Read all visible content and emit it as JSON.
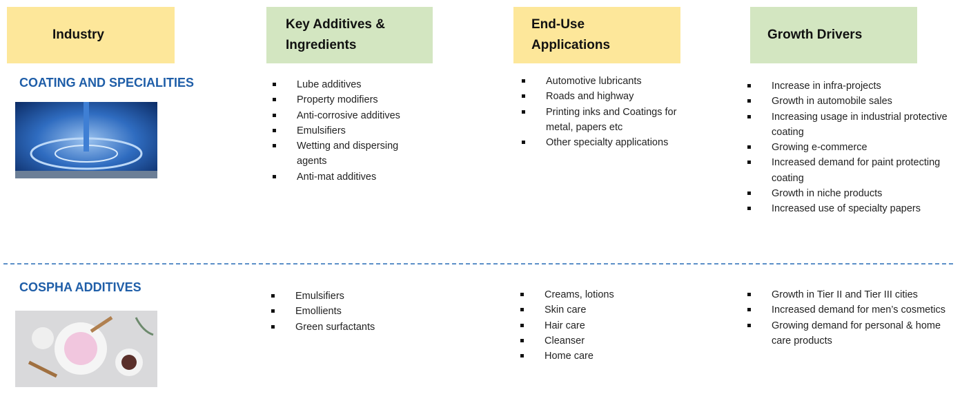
{
  "headers": [
    "Industry",
    "Key Additives & Ingredients",
    "End-Use Applications",
    "Growth Drivers"
  ],
  "rows": [
    {
      "industry": "COATING AND SPECIALITIES",
      "additives": [
        "Lube additives",
        "Property modifiers",
        "Anti-corrosive additives",
        "Emulsifiers",
        "Wetting and dispersing agents",
        "Anti-mat additives"
      ],
      "applications": [
        "Automotive lubricants",
        "Roads and highway",
        "Printing inks and Coatings for metal, papers etc",
        "Other specialty applications"
      ],
      "drivers": [
        "Increase in infra-projects",
        "Growth in automobile sales",
        "Increasing usage in industrial protective coating",
        "Growing e-commerce",
        "Increased demand for paint protecting coating",
        "Growth in niche products",
        "Increased use of specialty papers"
      ]
    },
    {
      "industry": "COSPHA ADDITIVES",
      "additives": [
        "Emulsifiers",
        "Emollients",
        "Green surfactants"
      ],
      "applications": [
        "Creams, lotions",
        "Skin care",
        "Hair care",
        "Cleanser",
        "Home care"
      ],
      "drivers": [
        "Growth in Tier II and Tier III cities",
        "Increased demand for men’s cosmetics",
        "Growing demand for personal & home care products"
      ]
    }
  ]
}
